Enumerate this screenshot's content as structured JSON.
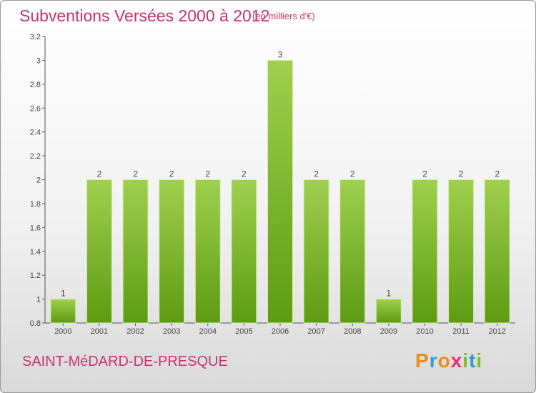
{
  "header": {
    "title": "Subventions Versées 2000 à 2012",
    "unit": "(en milliers d'€)"
  },
  "footer": {
    "commune": "SAINT-MéDARD-DE-PRESQUE"
  },
  "brand": {
    "letters": [
      {
        "ch": "P",
        "color": "#f08c1a"
      },
      {
        "ch": "r",
        "color": "#2a9bd6"
      },
      {
        "ch": "o",
        "color": "#f08c1a"
      },
      {
        "ch": "x",
        "color": "#e52f6e"
      },
      {
        "ch": "i",
        "color": "#7bbf2a"
      },
      {
        "ch": "t",
        "color": "#2a9bd6"
      },
      {
        "ch": "i",
        "color": "#7bbf2a"
      }
    ]
  },
  "colors": {
    "bar_top": "#9fd04f",
    "bar_bottom": "#5e9b12",
    "text": "#c8336b",
    "axis": "#555555"
  },
  "chart_data": {
    "type": "bar",
    "title": "Subventions Versées 2000 à 2012",
    "xlabel": "",
    "ylabel": "",
    "categories": [
      "2000",
      "2001",
      "2002",
      "2003",
      "2004",
      "2005",
      "2006",
      "2007",
      "2008",
      "2009",
      "2010",
      "2011",
      "2012"
    ],
    "values": [
      1,
      2,
      2,
      2,
      2,
      2,
      3,
      2,
      2,
      1,
      2,
      2,
      2
    ],
    "ylim": [
      0.8,
      3.2
    ],
    "yticks": [
      "0.8",
      "1",
      "1.2",
      "1.4",
      "1.6",
      "1.8",
      "2",
      "2.2",
      "2.4",
      "2.6",
      "2.8",
      "3",
      "3.2"
    ],
    "grid": false,
    "legend": "none"
  }
}
